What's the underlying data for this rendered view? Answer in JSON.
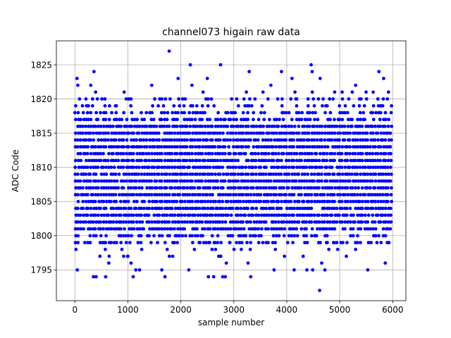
{
  "chart_data": {
    "type": "scatter",
    "title": "channel073 higain raw data",
    "xlabel": "sample number",
    "ylabel": "ADC Code",
    "xlim": [
      -350,
      6250
    ],
    "ylim": [
      1790.5,
      1828.5
    ],
    "xticks": [
      0,
      1000,
      2000,
      3000,
      4000,
      5000,
      6000
    ],
    "yticks": [
      1795,
      1800,
      1805,
      1810,
      1815,
      1820,
      1825
    ],
    "grid": true,
    "legend": "none",
    "marker_color": "#0000ff",
    "sampling": {
      "n_samples": 6000,
      "stride": 48,
      "stable_min": 1800,
      "stable_max": 1818
    },
    "outliers": [
      {
        "x": 20,
        "y": 1798
      },
      {
        "x": 40,
        "y": 1823
      },
      {
        "x": 55,
        "y": 1822
      },
      {
        "x": 45,
        "y": 1795
      },
      {
        "x": 300,
        "y": 1822
      },
      {
        "x": 360,
        "y": 1824
      },
      {
        "x": 350,
        "y": 1794
      },
      {
        "x": 400,
        "y": 1794
      },
      {
        "x": 580,
        "y": 1794
      },
      {
        "x": 640,
        "y": 1796
      },
      {
        "x": 930,
        "y": 1821
      },
      {
        "x": 1000,
        "y": 1797
      },
      {
        "x": 1060,
        "y": 1796
      },
      {
        "x": 1100,
        "y": 1794
      },
      {
        "x": 1150,
        "y": 1795
      },
      {
        "x": 1220,
        "y": 1795
      },
      {
        "x": 1450,
        "y": 1822
      },
      {
        "x": 1640,
        "y": 1795
      },
      {
        "x": 1700,
        "y": 1794
      },
      {
        "x": 1780,
        "y": 1827
      },
      {
        "x": 1950,
        "y": 1823
      },
      {
        "x": 2180,
        "y": 1825
      },
      {
        "x": 2210,
        "y": 1822
      },
      {
        "x": 2150,
        "y": 1795
      },
      {
        "x": 2420,
        "y": 1821
      },
      {
        "x": 2500,
        "y": 1823
      },
      {
        "x": 2520,
        "y": 1794
      },
      {
        "x": 2620,
        "y": 1794
      },
      {
        "x": 2750,
        "y": 1825
      },
      {
        "x": 2790,
        "y": 1794
      },
      {
        "x": 2840,
        "y": 1794
      },
      {
        "x": 2860,
        "y": 1796
      },
      {
        "x": 3290,
        "y": 1824
      },
      {
        "x": 3270,
        "y": 1796
      },
      {
        "x": 3320,
        "y": 1794
      },
      {
        "x": 3700,
        "y": 1822
      },
      {
        "x": 3760,
        "y": 1795
      },
      {
        "x": 3900,
        "y": 1824
      },
      {
        "x": 4100,
        "y": 1823
      },
      {
        "x": 4140,
        "y": 1795
      },
      {
        "x": 4380,
        "y": 1795
      },
      {
        "x": 4460,
        "y": 1825
      },
      {
        "x": 4480,
        "y": 1824
      },
      {
        "x": 4490,
        "y": 1795
      },
      {
        "x": 4630,
        "y": 1823
      },
      {
        "x": 4620,
        "y": 1792
      },
      {
        "x": 4660,
        "y": 1796
      },
      {
        "x": 4720,
        "y": 1795
      },
      {
        "x": 5300,
        "y": 1822
      },
      {
        "x": 5530,
        "y": 1795
      },
      {
        "x": 5740,
        "y": 1824
      },
      {
        "x": 5830,
        "y": 1823
      },
      {
        "x": 5860,
        "y": 1796
      },
      {
        "x": 5900,
        "y": 1820
      }
    ]
  }
}
